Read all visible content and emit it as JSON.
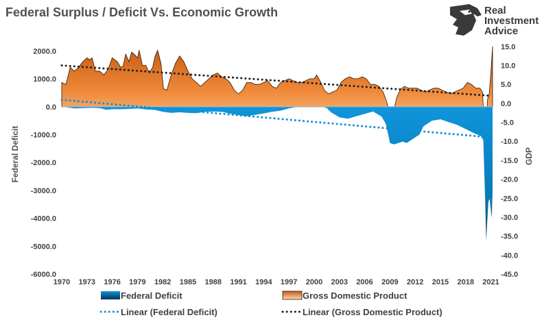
{
  "logo": {
    "line1": "Real",
    "line2": "Investment",
    "line3": "Advice"
  },
  "chart_data": {
    "type": "area",
    "title": "Federal Surplus / Deficit Vs. Economic Growth",
    "ylabel_left": "Federal Deficit",
    "ylabel_right": "GDP",
    "ylim_left": [
      -6000,
      2500
    ],
    "ylim_right": [
      -45,
      17.5
    ],
    "left_ticks": [
      "2000.0",
      "1000.0",
      "0.0",
      "-1000.0",
      "-2000.0",
      "-3000.0",
      "-4000.0",
      "-5000.0",
      "-6000.0"
    ],
    "left_tick_values": [
      2000,
      1000,
      0,
      -1000,
      -2000,
      -3000,
      -4000,
      -5000,
      -6000
    ],
    "right_ticks": [
      "15.0",
      "10.0",
      "5.0",
      "0.0",
      "-5.0",
      "-10.0",
      "-15.0",
      "-20.0",
      "-25.0",
      "-30.0",
      "-35.0",
      "-40.0",
      "-45.0"
    ],
    "right_tick_values": [
      15,
      10,
      5,
      0,
      -5,
      -10,
      -15,
      -20,
      -25,
      -30,
      -35,
      -40,
      -45
    ],
    "x_ticks": [
      "1970",
      "1973",
      "1976",
      "1979",
      "1982",
      "1985",
      "1988",
      "1991",
      "1994",
      "1997",
      "2000",
      "2003",
      "2006",
      "2009",
      "2012",
      "2015",
      "2018",
      "2021"
    ],
    "x_tick_values": [
      1970,
      1973,
      1976,
      1979,
      1982,
      1985,
      1988,
      1991,
      1994,
      1997,
      2000,
      2003,
      2006,
      2009,
      2012,
      2015,
      2018,
      2021
    ],
    "xlim": [
      1970,
      2021.2
    ],
    "series": [
      {
        "name": "Gross Domestic Product",
        "axis": "right",
        "color": "#e8762b",
        "points": [
          [
            1970.0,
            5.5
          ],
          [
            1970.5,
            5.0
          ],
          [
            1971.0,
            9.5
          ],
          [
            1971.5,
            8.5
          ],
          [
            1972.0,
            9.5
          ],
          [
            1972.5,
            11.0
          ],
          [
            1973.0,
            12.0
          ],
          [
            1973.3,
            11.5
          ],
          [
            1973.6,
            12.0
          ],
          [
            1974.0,
            8.5
          ],
          [
            1974.5,
            8.5
          ],
          [
            1975.0,
            7.5
          ],
          [
            1975.5,
            9.0
          ],
          [
            1976.0,
            12.0
          ],
          [
            1976.3,
            11.5
          ],
          [
            1976.6,
            11.0
          ],
          [
            1977.0,
            9.5
          ],
          [
            1977.3,
            9.8
          ],
          [
            1977.6,
            13.0
          ],
          [
            1978.0,
            11.0
          ],
          [
            1978.3,
            13.5
          ],
          [
            1978.6,
            13.0
          ],
          [
            1979.0,
            12.0
          ],
          [
            1979.2,
            14.0
          ],
          [
            1979.6,
            10.0
          ],
          [
            1980.0,
            10.0
          ],
          [
            1980.4,
            8.0
          ],
          [
            1980.8,
            9.5
          ],
          [
            1981.1,
            12.5
          ],
          [
            1981.4,
            14.0
          ],
          [
            1981.8,
            10.5
          ],
          [
            1982.1,
            3.8
          ],
          [
            1982.5,
            3.5
          ],
          [
            1983.0,
            7.5
          ],
          [
            1983.5,
            10.5
          ],
          [
            1984.0,
            12.5
          ],
          [
            1984.5,
            11.0
          ],
          [
            1985.0,
            8.5
          ],
          [
            1985.5,
            6.5
          ],
          [
            1986.0,
            5.5
          ],
          [
            1986.5,
            4.5
          ],
          [
            1987.0,
            5.5
          ],
          [
            1987.5,
            6.5
          ],
          [
            1988.0,
            7.5
          ],
          [
            1988.5,
            8.0
          ],
          [
            1989.0,
            7.0
          ],
          [
            1989.5,
            6.5
          ],
          [
            1990.0,
            5.5
          ],
          [
            1990.5,
            3.5
          ],
          [
            1991.0,
            2.5
          ],
          [
            1991.5,
            3.5
          ],
          [
            1992.0,
            5.5
          ],
          [
            1992.5,
            5.5
          ],
          [
            1993.0,
            5.0
          ],
          [
            1993.5,
            5.0
          ],
          [
            1994.0,
            5.5
          ],
          [
            1994.5,
            6.0
          ],
          [
            1995.0,
            4.5
          ],
          [
            1995.5,
            4.0
          ],
          [
            1996.0,
            5.5
          ],
          [
            1996.5,
            6.0
          ],
          [
            1997.0,
            6.5
          ],
          [
            1997.5,
            6.0
          ],
          [
            1998.0,
            5.5
          ],
          [
            1998.5,
            5.5
          ],
          [
            1999.0,
            6.0
          ],
          [
            1999.5,
            6.5
          ],
          [
            2000.0,
            6.5
          ],
          [
            2000.3,
            7.5
          ],
          [
            2000.8,
            5.5
          ],
          [
            2001.2,
            3.5
          ],
          [
            2001.7,
            2.5
          ],
          [
            2002.2,
            3.0
          ],
          [
            2002.7,
            3.5
          ],
          [
            2003.2,
            5.5
          ],
          [
            2003.7,
            6.5
          ],
          [
            2004.2,
            7.0
          ],
          [
            2004.7,
            6.5
          ],
          [
            2005.2,
            6.5
          ],
          [
            2005.7,
            7.0
          ],
          [
            2006.2,
            6.5
          ],
          [
            2006.7,
            5.0
          ],
          [
            2007.2,
            5.0
          ],
          [
            2007.7,
            4.5
          ],
          [
            2008.2,
            3.0
          ],
          [
            2008.6,
            0.5
          ],
          [
            2008.9,
            -2.0
          ],
          [
            2009.2,
            -3.0
          ],
          [
            2009.5,
            -1.5
          ],
          [
            2009.8,
            1.5
          ],
          [
            2010.2,
            3.5
          ],
          [
            2010.7,
            4.5
          ],
          [
            2011.2,
            4.0
          ],
          [
            2011.7,
            4.0
          ],
          [
            2012.2,
            4.0
          ],
          [
            2012.7,
            3.5
          ],
          [
            2013.2,
            3.0
          ],
          [
            2013.7,
            3.5
          ],
          [
            2014.2,
            4.0
          ],
          [
            2014.7,
            4.0
          ],
          [
            2015.2,
            3.5
          ],
          [
            2015.7,
            3.0
          ],
          [
            2016.2,
            2.5
          ],
          [
            2016.7,
            3.0
          ],
          [
            2017.2,
            3.5
          ],
          [
            2017.7,
            4.0
          ],
          [
            2018.2,
            5.5
          ],
          [
            2018.7,
            5.0
          ],
          [
            2019.2,
            4.0
          ],
          [
            2019.7,
            4.0
          ],
          [
            2020.0,
            3.0
          ],
          [
            2020.15,
            -3.0
          ],
          [
            2020.3,
            -9.0
          ],
          [
            2020.45,
            -7.0
          ],
          [
            2020.6,
            1.0
          ],
          [
            2020.8,
            2.5
          ],
          [
            2021.0,
            8.0
          ],
          [
            2021.2,
            15.0
          ]
        ]
      },
      {
        "name": "Federal Deficit",
        "axis": "left",
        "color": "#0f8fd4",
        "points": [
          [
            1970.0,
            0
          ],
          [
            1970.8,
            -30
          ],
          [
            1971.5,
            -60
          ],
          [
            1972.5,
            -50
          ],
          [
            1973.5,
            -40
          ],
          [
            1974.5,
            -50
          ],
          [
            1975.3,
            -110
          ],
          [
            1976.0,
            -90
          ],
          [
            1977.0,
            -90
          ],
          [
            1978.0,
            -80
          ],
          [
            1979.0,
            -60
          ],
          [
            1980.0,
            -100
          ],
          [
            1981.0,
            -110
          ],
          [
            1982.0,
            -180
          ],
          [
            1983.0,
            -220
          ],
          [
            1984.0,
            -200
          ],
          [
            1985.0,
            -220
          ],
          [
            1986.0,
            -230
          ],
          [
            1987.0,
            -180
          ],
          [
            1988.0,
            -170
          ],
          [
            1989.0,
            -180
          ],
          [
            1990.0,
            -250
          ],
          [
            1991.0,
            -300
          ],
          [
            1992.0,
            -340
          ],
          [
            1993.0,
            -290
          ],
          [
            1994.0,
            -240
          ],
          [
            1995.0,
            -180
          ],
          [
            1996.0,
            -140
          ],
          [
            1997.0,
            -60
          ],
          [
            1998.0,
            0
          ],
          [
            1999.0,
            0
          ],
          [
            2000.0,
            0
          ],
          [
            2001.0,
            0
          ],
          [
            2001.5,
            -50
          ],
          [
            2002.0,
            -200
          ],
          [
            2003.0,
            -380
          ],
          [
            2004.0,
            -430
          ],
          [
            2005.0,
            -340
          ],
          [
            2006.0,
            -260
          ],
          [
            2007.0,
            -170
          ],
          [
            2008.0,
            -350
          ],
          [
            2008.5,
            -600
          ],
          [
            2008.8,
            -1000
          ],
          [
            2009.0,
            -1300
          ],
          [
            2009.5,
            -1350
          ],
          [
            2010.0,
            -1300
          ],
          [
            2010.5,
            -1250
          ],
          [
            2011.0,
            -1300
          ],
          [
            2011.5,
            -1200
          ],
          [
            2012.0,
            -1100
          ],
          [
            2012.5,
            -1000
          ],
          [
            2013.0,
            -700
          ],
          [
            2014.0,
            -500
          ],
          [
            2015.0,
            -450
          ],
          [
            2016.0,
            -550
          ],
          [
            2017.0,
            -650
          ],
          [
            2018.0,
            -800
          ],
          [
            2019.0,
            -950
          ],
          [
            2019.8,
            -1050
          ],
          [
            2020.1,
            -1200
          ],
          [
            2020.3,
            -3200
          ],
          [
            2020.45,
            -4800
          ],
          [
            2020.55,
            -4200
          ],
          [
            2020.7,
            -3400
          ],
          [
            2020.85,
            -3300
          ],
          [
            2021.0,
            -3700
          ],
          [
            2021.1,
            -4000
          ],
          [
            2021.2,
            -3000
          ]
        ]
      }
    ],
    "trendlines": [
      {
        "name": "Linear (Federal Deficit)",
        "axis": "left",
        "color": "#0f8fd4",
        "style": "dotted",
        "x": [
          1970,
          2021
        ],
        "y": [
          250,
          -1100
        ]
      },
      {
        "name": "Linear (Gross Domestic Product)",
        "axis": "right",
        "color": "#222222",
        "style": "dotted",
        "x": [
          1970,
          2021
        ],
        "y": [
          10.0,
          2.0
        ]
      }
    ],
    "legend": [
      {
        "label": "Federal Deficit",
        "kind": "area",
        "color": "#0f8fd4"
      },
      {
        "label": "Gross Domestic Product",
        "kind": "area",
        "color": "#e8762b"
      },
      {
        "label": "Linear (Federal Deficit)",
        "kind": "dotted",
        "color": "#0f8fd4"
      },
      {
        "label": "Linear (Gross Domestic Product)",
        "kind": "dotted",
        "color": "#222222"
      }
    ],
    "grid": false,
    "legend_position": "bottom"
  }
}
